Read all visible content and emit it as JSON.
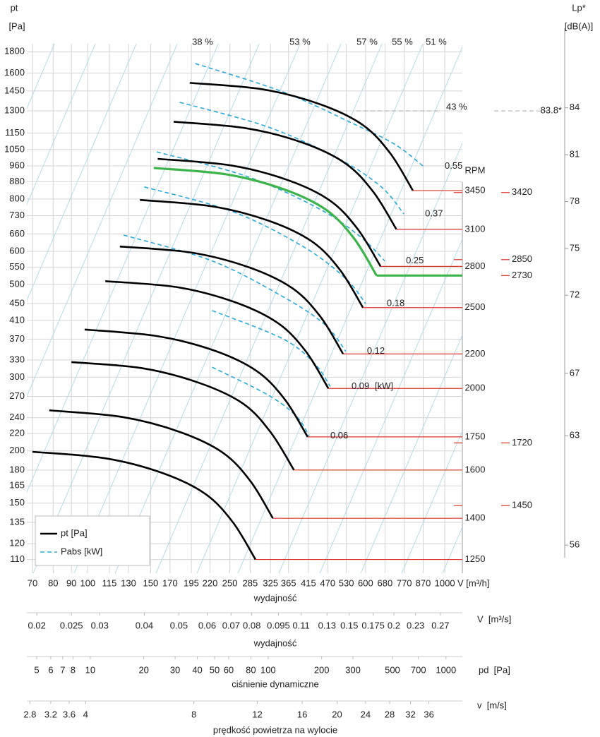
{
  "chart_data": {
    "type": "fan-curve",
    "y_label": "pt",
    "y_unit": "[Pa]",
    "x_unit": "V [m³/h]",
    "x_title": "wydajność",
    "log_scale": true,
    "grid": true,
    "xlim": [
      67.5,
      1120
    ],
    "ylim": [
      102,
      1880
    ],
    "xticks": [
      70,
      80,
      90,
      100,
      115,
      130,
      150,
      170,
      195,
      220,
      250,
      285,
      325,
      365,
      415,
      470,
      530,
      600,
      680,
      770,
      870,
      1000
    ],
    "yticks": [
      110,
      120,
      135,
      150,
      165,
      180,
      200,
      220,
      240,
      270,
      300,
      330,
      370,
      410,
      450,
      500,
      550,
      600,
      660,
      730,
      800,
      880,
      960,
      1050,
      1150,
      1300,
      1450,
      1600,
      1800
    ],
    "y2_label": "Lp*",
    "y2_unit": "[dB(A)]",
    "y2lim": [
      54.2,
      88.1
    ],
    "y2ticks": [
      56,
      63,
      67,
      72,
      75,
      78,
      81,
      84
    ],
    "lp_marker": {
      "value": 83.8,
      "label": "83.8*"
    },
    "rpm_title": "RPM",
    "curve_color": "#000000",
    "red_color": "#e0352b",
    "fan_curves": [
      {
        "rpm": 1250,
        "x": [
          70,
          112,
          162,
          213,
          255,
          295
        ],
        "values": [
          199,
          192,
          177,
          158,
          135,
          110
        ]
      },
      {
        "rpm": 1400,
        "x": [
          78,
          125,
          181,
          239,
          286,
          330
        ],
        "values": [
          250,
          241,
          222,
          198,
          169,
          138
        ]
      },
      {
        "rpm": 1600,
        "x": [
          90,
          143,
          207,
          273,
          326,
          378
        ],
        "values": [
          326,
          315,
          290,
          259,
          221,
          180
        ]
      },
      {
        "rpm": 1750,
        "x": [
          98,
          157,
          227,
          298,
          357,
          413
        ],
        "values": [
          390,
          376,
          347,
          310,
          265,
          216
        ]
      },
      {
        "rpm": 2000,
        "x": [
          112,
          179,
          259,
          341,
          408,
          472
        ],
        "values": [
          509,
          492,
          453,
          404,
          346,
          282
        ]
      },
      {
        "rpm": 2200,
        "x": [
          123,
          197,
          285,
          375,
          449,
          519
        ],
        "values": [
          616,
          595,
          548,
          489,
          418,
          341
        ]
      },
      {
        "rpm": 2500,
        "x": [
          140,
          224,
          324,
          426,
          510,
          590
        ],
        "values": [
          796,
          768,
          708,
          632,
          540,
          440
        ]
      },
      {
        "rpm": 2800,
        "x": [
          157,
          251,
          363,
          477,
          571,
          661
        ],
        "values": [
          998,
          963,
          888,
          793,
          677,
          552
        ]
      },
      {
        "rpm": 3100,
        "x": [
          174,
          278,
          402,
          528,
          632,
          732
        ],
        "values": [
          1224,
          1181,
          1089,
          972,
          830,
          677
        ]
      },
      {
        "rpm": 3450,
        "x": [
          193,
          309,
          447,
          588,
          704,
          814
        ],
        "values": [
          1516,
          1463,
          1348,
          1204,
          1028,
          838
        ]
      }
    ],
    "selected_curve": {
      "rpm": 2730,
      "color": "#3cb44b",
      "x": [
        153,
        245,
        354,
        465,
        557,
        644
      ],
      "values": [
        949,
        916,
        844,
        754,
        644,
        525
      ]
    },
    "speed_marks": [
      {
        "rpm": 3420,
        "pt": 829
      },
      {
        "rpm": 2850,
        "pt": 573
      },
      {
        "rpm": 1720,
        "pt": 209
      },
      {
        "rpm": 1450,
        "pt": 148
      }
    ],
    "pabs": {
      "color": "#29a9dc",
      "unit": "[kW]",
      "curves": [
        {
          "power": 0.55,
          "x": [
            200,
            351,
            553,
            727,
            872
          ],
          "values": [
            1686,
            1444,
            1212,
            1079,
            957
          ]
        },
        {
          "power": 0.37,
          "x": [
            181,
            320,
            505,
            664,
            768
          ],
          "values": [
            1362,
            1189,
            998,
            855,
            737
          ]
        },
        {
          "power": 0.25,
          "x": [
            156,
            279,
            441,
            579,
            679
          ],
          "values": [
            1037,
            906,
            761,
            651,
            569
          ]
        },
        {
          "power": 0.18,
          "x": [
            144,
            255,
            402,
            528,
            600
          ],
          "values": [
            855,
            746,
            615,
            516,
            450
          ]
        },
        {
          "power": 0.12,
          "x": [
            126,
            223,
            351,
            461,
            528
          ],
          "values": [
            656,
            569,
            468,
            401,
            346
          ]
        },
        {
          "power": 0.09,
          "x": [
            223,
            351,
            431,
            478
          ],
          "values": [
            433,
            371,
            324,
            285
          ]
        },
        {
          "power": 0.06,
          "x": [
            223,
            320,
            384,
            417
          ],
          "values": [
            317,
            272,
            242,
            217
          ]
        }
      ]
    },
    "efficiency_labels": [
      "38 %",
      "53 %",
      "57 %",
      "55 %",
      "51 %",
      "43 %"
    ],
    "legend": [
      {
        "name": "pt [Pa]"
      },
      {
        "name": "Pabs [kW]"
      }
    ],
    "aux_axes": [
      {
        "unit": "V  [m³/s]",
        "title": "wydajność",
        "xlim": [
          0.01875,
          0.3111
        ],
        "ticks": [
          0.02,
          0.025,
          0.03,
          0.04,
          0.05,
          0.06,
          0.07,
          0.08,
          0.095,
          0.11,
          0.13,
          0.15,
          0.175,
          0.2,
          0.23,
          0.27
        ]
      },
      {
        "unit": "pd  [Pa]",
        "title": "ciśnienie dynamiczne",
        "xlim": [
          4.4,
          1236
        ],
        "ticks": [
          5,
          6,
          7,
          8,
          10,
          20,
          30,
          40,
          50,
          60,
          80,
          100,
          200,
          300,
          500,
          700,
          1000
        ]
      },
      {
        "unit": "v  [m/s]",
        "title": "prędkość powietrza na wylocie",
        "xlim": [
          2.745,
          44.6
        ],
        "ticks": [
          2.8,
          3.2,
          3.6,
          4,
          8,
          12,
          16,
          20,
          24,
          28,
          32,
          36
        ]
      }
    ]
  }
}
